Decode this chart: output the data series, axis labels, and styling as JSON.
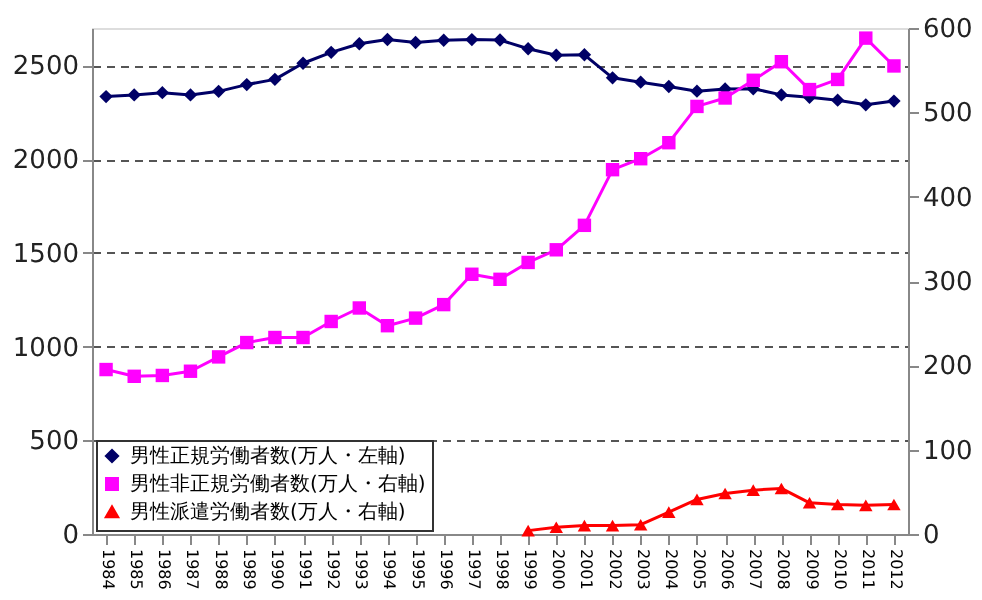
{
  "chart_data": {
    "type": "line",
    "categories": [
      "1984",
      "1985",
      "1986",
      "1987",
      "1988",
      "1989",
      "1990",
      "1991",
      "1992",
      "1993",
      "1994",
      "1995",
      "1996",
      "1997",
      "1998",
      "1999",
      "2000",
      "2001",
      "2002",
      "2003",
      "2004",
      "2005",
      "2006",
      "2007",
      "2008",
      "2009",
      "2010",
      "2011",
      "2012"
    ],
    "series": [
      {
        "name": "男性正規労働者数(万人・左軸)",
        "color": "#000066",
        "marker": "diamond",
        "axis": "y",
        "values": [
          2334,
          2343,
          2355,
          2343,
          2362,
          2398,
          2426,
          2512,
          2570,
          2616,
          2639,
          2623,
          2635,
          2638,
          2636,
          2589,
          2555,
          2557,
          2434,
          2411,
          2388,
          2363,
          2375,
          2376,
          2343,
          2330,
          2315,
          2290,
          2310
        ]
      },
      {
        "name": "男性非正規労働者数(万人・右軸)",
        "color": "#ff00ff",
        "marker": "square",
        "axis": "y2",
        "values": [
          195,
          187,
          188,
          193,
          210,
          227,
          233,
          233,
          252,
          268,
          247,
          256,
          272,
          308,
          302,
          322,
          337,
          366,
          432,
          445,
          464,
          507,
          517,
          538,
          560,
          527,
          539,
          588,
          555
        ]
      },
      {
        "name": "男性派遣労働者数(万人・右軸)",
        "color": "#ff0000",
        "marker": "triangle",
        "axis": "y2",
        "values": [
          null,
          null,
          null,
          null,
          null,
          null,
          null,
          null,
          null,
          null,
          null,
          null,
          null,
          null,
          null,
          4,
          8,
          10,
          10,
          11,
          26,
          41,
          48,
          52,
          54,
          37,
          35,
          34,
          35
        ]
      }
    ],
    "ylim": [
      0,
      2700
    ],
    "yticks": [
      0,
      500,
      1000,
      1500,
      2000,
      2500
    ],
    "y2lim": [
      0,
      600
    ],
    "y2ticks": [
      0,
      100,
      200,
      300,
      400,
      500,
      600
    ],
    "grid": "y",
    "legend": "bottom left",
    "line_style": "solid"
  }
}
